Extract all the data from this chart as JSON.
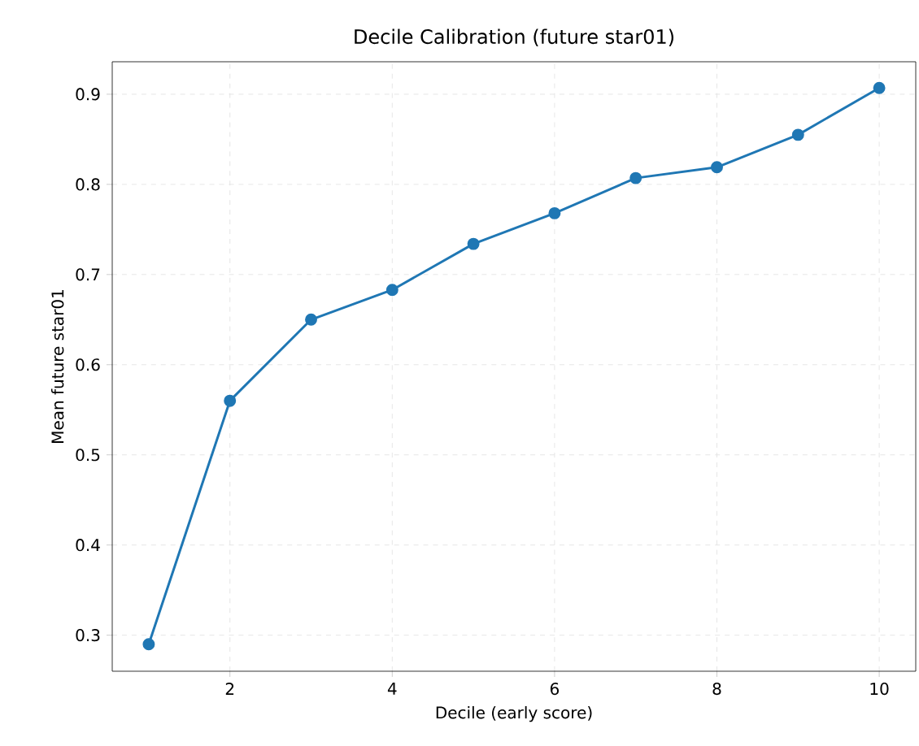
{
  "chart_data": {
    "type": "line",
    "title": "Decile Calibration (future star01)",
    "xlabel": "Decile (early score)",
    "ylabel": "Mean future star01",
    "x": [
      1,
      2,
      3,
      4,
      5,
      6,
      7,
      8,
      9,
      10
    ],
    "series": [
      {
        "color": "#1f77b4",
        "values": [
          0.29,
          0.56,
          0.65,
          0.683,
          0.734,
          0.768,
          0.807,
          0.819,
          0.855,
          0.907
        ]
      }
    ],
    "xlim": [
      0.55,
      10.45
    ],
    "ylim": [
      0.26,
      0.936
    ],
    "xticks": [
      2,
      4,
      6,
      8,
      10
    ],
    "yticks": [
      0.3,
      0.4,
      0.5,
      0.6,
      0.7,
      0.8,
      0.9
    ],
    "grid": true,
    "marker": "circle",
    "line_style": "solid"
  }
}
